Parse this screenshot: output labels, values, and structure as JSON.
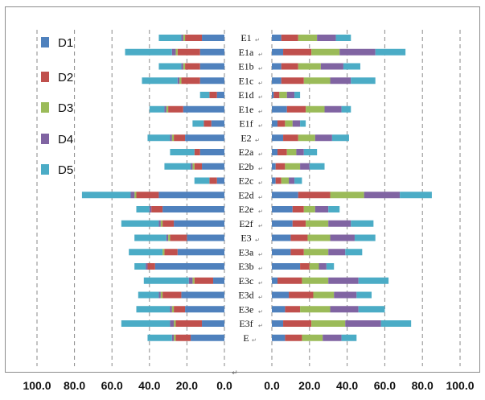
{
  "chart_data": {
    "type": "bar",
    "orientation": "horizontal-butterfly",
    "categories": [
      "E1",
      "E1a",
      "E1b",
      "E1c",
      "E1d",
      "E1e",
      "E1f",
      "E2",
      "E2a",
      "E2b",
      "E2c",
      "E2d",
      "E2e",
      "E2f",
      "E3",
      "E3a",
      "E3b",
      "E3c",
      "E3d",
      "E3e",
      "E3f",
      "E"
    ],
    "series_names": [
      "D1",
      "D2",
      "D3",
      "D4",
      "D5"
    ],
    "colors": [
      "#4f81bd",
      "#c0504d",
      "#9bbb59",
      "#8064a2",
      "#4bacc6"
    ],
    "left_panel": {
      "xlim": [
        100,
        0
      ],
      "ticks": [
        "100.0",
        "80.0",
        "60.0",
        "40.0",
        "20.0",
        "0.0"
      ],
      "series": [
        {
          "name": "D1",
          "values": [
            12,
            13,
            13,
            13,
            4,
            22,
            7,
            21,
            13,
            12,
            4,
            35,
            33,
            27,
            20,
            25,
            37,
            6,
            23,
            21,
            12,
            18
          ]
        },
        {
          "name": "D2",
          "values": [
            9,
            12,
            8,
            10,
            4,
            8,
            4,
            6,
            3,
            4,
            4,
            12,
            6,
            6,
            9,
            7,
            4,
            10,
            10,
            6,
            14,
            8
          ]
        },
        {
          "name": "D3",
          "values": [
            1,
            1,
            1,
            1,
            0,
            1,
            0,
            1,
            0,
            1,
            0,
            1,
            0,
            1,
            1,
            1,
            0,
            1,
            1,
            1,
            1,
            1
          ]
        },
        {
          "name": "D4",
          "values": [
            1,
            2,
            1,
            1,
            0,
            1,
            0,
            1,
            0,
            1,
            0,
            2,
            1,
            1,
            1,
            0,
            1,
            2,
            1,
            1,
            2,
            1
          ]
        },
        {
          "name": "D5",
          "values": [
            12,
            25,
            12,
            19,
            5,
            8,
            6,
            12,
            13,
            14,
            8,
            26,
            7,
            20,
            17,
            18,
            6,
            24,
            11,
            18,
            26,
            13
          ]
        }
      ]
    },
    "right_panel": {
      "xlim": [
        0,
        100
      ],
      "ticks": [
        "0.0",
        "20.0",
        "40.0",
        "60.0",
        "80.0",
        "100.0"
      ],
      "series": [
        {
          "name": "D1",
          "values": [
            5,
            6,
            5,
            5,
            1,
            8,
            3,
            6,
            3,
            2,
            2,
            14,
            11,
            11,
            10,
            10,
            15,
            3,
            9,
            7,
            6,
            7
          ]
        },
        {
          "name": "D2",
          "values": [
            9,
            15,
            9,
            12,
            3,
            10,
            4,
            8,
            5,
            5,
            3,
            17,
            6,
            7,
            9,
            7,
            5,
            13,
            13,
            8,
            15,
            9
          ]
        },
        {
          "name": "D3",
          "values": [
            10,
            15,
            12,
            14,
            4,
            10,
            4,
            9,
            5,
            8,
            4,
            18,
            6,
            12,
            12,
            13,
            5,
            14,
            11,
            16,
            18,
            11
          ]
        },
        {
          "name": "D4",
          "values": [
            10,
            19,
            12,
            11,
            4,
            9,
            4,
            9,
            4,
            5,
            3,
            19,
            7,
            12,
            13,
            9,
            4,
            16,
            12,
            15,
            19,
            10
          ]
        },
        {
          "name": "D5",
          "values": [
            8,
            16,
            9,
            13,
            3,
            5,
            3,
            9,
            7,
            8,
            4,
            17,
            6,
            12,
            11,
            9,
            4,
            16,
            8,
            14,
            16,
            8
          ]
        }
      ]
    },
    "legend": {
      "placement": "left",
      "entries": [
        "D1",
        "D2",
        "D3",
        "D4",
        "D5"
      ]
    },
    "grid": {
      "vertical_dashed": true
    }
  }
}
